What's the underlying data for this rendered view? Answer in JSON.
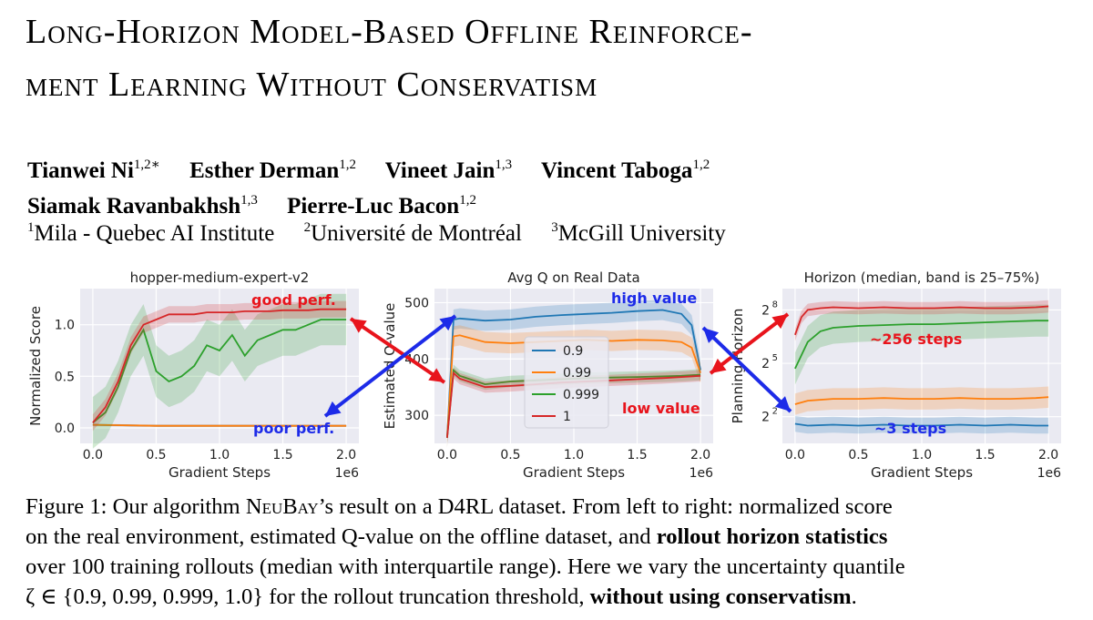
{
  "paper": {
    "title_line1": "Long-Horizon Model-Based Offline Reinforce-",
    "title_line2": "ment Learning Without Conservatism",
    "authors_line1": [
      {
        "name": "Tianwei Ni",
        "sup": "1,2∗"
      },
      {
        "name": "Esther Derman",
        "sup": "1,2"
      },
      {
        "name": "Vineet Jain",
        "sup": "1,3"
      },
      {
        "name": "Vincent Taboga",
        "sup": "1,2"
      }
    ],
    "authors_line2": [
      {
        "name": "Siamak Ravanbakhsh",
        "sup": "1,3"
      },
      {
        "name": "Pierre-Luc Bacon",
        "sup": "1,2"
      }
    ],
    "affiliations": [
      {
        "sup": "1",
        "name": "Mila - Quebec AI Institute"
      },
      {
        "sup": "2",
        "name": "Université de Montréal"
      },
      {
        "sup": "3",
        "name": "McGill University"
      }
    ]
  },
  "caption": {
    "l1_a": "Figure 1: Our algorithm ",
    "l1_b": "NeuBay",
    "l1_c": "’s result on a D4RL dataset. From left to right: normalized score",
    "l2_a": "on the real environment, estimated Q-value on the offline dataset, and ",
    "l2_b": "rollout horizon statistics",
    "l3": "over 100 training rollouts (median with interquartile range). Here we vary the uncertainty quantile",
    "l4_a": "ζ ∈ {0.9, 0.99, 0.999, 1.0} for the rollout truncation threshold, ",
    "l4_b": "without using conservatism",
    "l4_c": "."
  },
  "colors": {
    "blue": "#1f77b4",
    "orange": "#ff7f0e",
    "green": "#2ca02c",
    "red": "#d62728",
    "annot_red": "#e8141c",
    "annot_blue": "#1d2be8"
  },
  "chart_data": [
    {
      "type": "line",
      "title": "hopper-medium-expert-v2",
      "xlabel": "Gradient Steps",
      "x_multiplier": "1e6",
      "ylabel": "Normalized Score",
      "xlim": [
        -0.1,
        2.1
      ],
      "ylim": [
        -0.15,
        1.35
      ],
      "xticks": [
        0.0,
        0.5,
        1.0,
        1.5,
        2.0
      ],
      "yticks": [
        0.0,
        0.5,
        1.0
      ],
      "xtick_labels": [
        "0.0",
        "0.5",
        "1.0",
        "1.5",
        "2.0"
      ],
      "ytick_labels": [
        "0.0",
        "0.5",
        "1.0"
      ],
      "series": [
        {
          "color": "blue",
          "x": [
            0,
            0.5,
            1.0,
            1.5,
            2.0
          ],
          "y": [
            0.03,
            0.02,
            0.02,
            0.02,
            0.02
          ],
          "band": 0.01
        },
        {
          "color": "orange",
          "x": [
            0,
            0.5,
            1.0,
            1.5,
            2.0
          ],
          "y": [
            0.03,
            0.02,
            0.02,
            0.02,
            0.02
          ],
          "band": 0.01
        },
        {
          "color": "green",
          "x": [
            0,
            0.1,
            0.2,
            0.3,
            0.4,
            0.5,
            0.6,
            0.7,
            0.8,
            0.9,
            1.0,
            1.1,
            1.2,
            1.3,
            1.4,
            1.5,
            1.6,
            1.7,
            1.8,
            1.9,
            2.0
          ],
          "y": [
            0.05,
            0.15,
            0.4,
            0.75,
            0.95,
            0.55,
            0.45,
            0.5,
            0.6,
            0.8,
            0.75,
            0.9,
            0.7,
            0.85,
            0.9,
            0.95,
            0.95,
            1.0,
            1.05,
            1.05,
            1.05
          ],
          "band": 0.25
        },
        {
          "color": "red",
          "x": [
            0,
            0.1,
            0.2,
            0.3,
            0.4,
            0.5,
            0.6,
            0.7,
            0.8,
            0.9,
            1.0,
            1.1,
            1.2,
            1.3,
            1.4,
            1.5,
            1.6,
            1.7,
            1.8,
            1.9,
            2.0
          ],
          "y": [
            0.05,
            0.2,
            0.45,
            0.8,
            1.0,
            1.05,
            1.1,
            1.1,
            1.1,
            1.12,
            1.12,
            1.12,
            1.13,
            1.13,
            1.13,
            1.14,
            1.14,
            1.14,
            1.15,
            1.15,
            1.15
          ],
          "band": 0.08
        }
      ],
      "annotations": [
        {
          "text": "good perf.",
          "color": "annot_red"
        },
        {
          "text": "poor perf.",
          "color": "annot_blue"
        }
      ]
    },
    {
      "type": "line",
      "title": "Avg Q on Real Data",
      "xlabel": "Gradient Steps",
      "x_multiplier": "1e6",
      "ylabel": "Estimated Q-value",
      "xlim": [
        -0.1,
        2.1
      ],
      "ylim": [
        250,
        525
      ],
      "xticks": [
        0.0,
        0.5,
        1.0,
        1.5,
        2.0
      ],
      "yticks": [
        300,
        400,
        500
      ],
      "xtick_labels": [
        "0.0",
        "0.5",
        "1.0",
        "1.5",
        "2.0"
      ],
      "ytick_labels": [
        "300",
        "400",
        "500"
      ],
      "series": [
        {
          "name": "0.9",
          "color": "blue",
          "x": [
            0,
            0.05,
            0.1,
            0.3,
            0.5,
            0.7,
            0.9,
            1.1,
            1.3,
            1.5,
            1.7,
            1.85,
            1.93,
            2.0
          ],
          "y": [
            260,
            470,
            472,
            468,
            470,
            475,
            478,
            480,
            482,
            485,
            487,
            480,
            460,
            380
          ],
          "band": 18
        },
        {
          "name": "0.99",
          "color": "orange",
          "x": [
            0,
            0.05,
            0.1,
            0.3,
            0.5,
            0.7,
            0.9,
            1.1,
            1.3,
            1.5,
            1.7,
            1.85,
            1.93,
            2.0
          ],
          "y": [
            260,
            440,
            442,
            430,
            428,
            430,
            432,
            434,
            432,
            434,
            433,
            430,
            420,
            375
          ],
          "band": 18
        },
        {
          "name": "0.999",
          "color": "green",
          "x": [
            0,
            0.05,
            0.1,
            0.3,
            0.5,
            0.7,
            0.9,
            1.1,
            1.3,
            1.5,
            1.7,
            1.85,
            2.0
          ],
          "y": [
            260,
            380,
            370,
            355,
            360,
            362,
            364,
            366,
            367,
            368,
            369,
            370,
            372
          ],
          "band": 10
        },
        {
          "name": "1",
          "color": "red",
          "x": [
            0,
            0.05,
            0.1,
            0.3,
            0.5,
            0.7,
            0.9,
            1.1,
            1.3,
            1.5,
            1.7,
            1.85,
            2.0
          ],
          "y": [
            260,
            375,
            365,
            350,
            352,
            355,
            358,
            360,
            362,
            364,
            366,
            368,
            370
          ],
          "band": 10
        }
      ],
      "legend": "center",
      "annotations": [
        {
          "text": "high value",
          "color": "annot_blue"
        },
        {
          "text": "low value",
          "color": "annot_red"
        }
      ]
    },
    {
      "type": "line",
      "title": "Horizon (median, band is 25–75%)",
      "xlabel": "Gradient Steps",
      "x_multiplier": "1e6",
      "ylabel": "Planning Horizon",
      "y_scale": "log2",
      "xlim": [
        -0.1,
        2.1
      ],
      "ylim": [
        0.5,
        9.2
      ],
      "xticks": [
        0.0,
        0.5,
        1.0,
        1.5,
        2.0
      ],
      "xtick_labels": [
        "0.0",
        "0.5",
        "1.0",
        "1.5",
        "2.0"
      ],
      "yticks_exp": [
        2,
        5,
        8
      ],
      "ytick_base": "2",
      "ytick_exps": [
        "2",
        "5",
        "8"
      ],
      "series": [
        {
          "color": "blue",
          "x": [
            0,
            0.1,
            0.3,
            0.5,
            0.7,
            0.9,
            1.1,
            1.3,
            1.5,
            1.7,
            1.9,
            2.0
          ],
          "y_exp": [
            1.6,
            1.5,
            1.55,
            1.5,
            1.55,
            1.5,
            1.5,
            1.55,
            1.5,
            1.55,
            1.5,
            1.5
          ],
          "band": 0.45
        },
        {
          "color": "orange",
          "x": [
            0,
            0.1,
            0.3,
            0.5,
            0.7,
            0.9,
            1.1,
            1.3,
            1.5,
            1.7,
            1.9,
            2.0
          ],
          "y_exp": [
            2.7,
            2.9,
            3.0,
            3.0,
            3.05,
            3.0,
            3.0,
            3.05,
            3.0,
            3.0,
            3.05,
            3.1
          ],
          "band": 0.6
        },
        {
          "color": "green",
          "x": [
            0,
            0.1,
            0.2,
            0.3,
            0.5,
            0.7,
            0.9,
            1.1,
            1.3,
            1.5,
            1.7,
            1.9,
            2.0
          ],
          "y_exp": [
            4.7,
            6.2,
            6.8,
            7.0,
            7.1,
            7.15,
            7.2,
            7.2,
            7.25,
            7.3,
            7.35,
            7.4,
            7.4
          ],
          "band": 0.9
        },
        {
          "color": "red",
          "x": [
            0,
            0.05,
            0.1,
            0.2,
            0.3,
            0.5,
            0.7,
            0.9,
            1.1,
            1.3,
            1.5,
            1.7,
            1.9,
            2.0
          ],
          "y_exp": [
            6.6,
            7.6,
            8.0,
            8.1,
            8.15,
            8.1,
            8.15,
            8.1,
            8.1,
            8.15,
            8.1,
            8.1,
            8.15,
            8.2
          ],
          "band": 0.35
        }
      ],
      "annotations": [
        {
          "text": "~256 steps",
          "color": "annot_red"
        },
        {
          "text": "~3 steps",
          "color": "annot_blue"
        }
      ]
    }
  ]
}
